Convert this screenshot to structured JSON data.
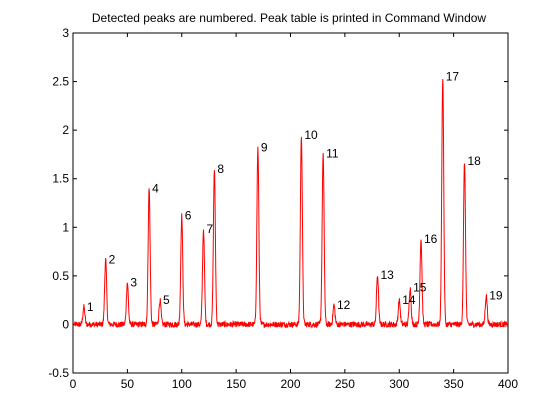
{
  "chart_data": {
    "type": "line",
    "title": "Detected peaks are numbered. Peak table is printed in Command Window",
    "xlabel": "",
    "ylabel": "",
    "xlim": [
      0,
      400
    ],
    "ylim": [
      -0.5,
      3
    ],
    "xticks": [
      0,
      50,
      100,
      150,
      200,
      250,
      300,
      350,
      400
    ],
    "yticks": [
      -0.5,
      0,
      0.5,
      1,
      1.5,
      2,
      2.5,
      3
    ],
    "xtick_labels": [
      "0",
      "50",
      "100",
      "150",
      "200",
      "250",
      "300",
      "350",
      "400"
    ],
    "ytick_labels": [
      "-0.5",
      "0",
      "0.5",
      "1",
      "1.5",
      "2",
      "2.5",
      "3"
    ],
    "grid": false,
    "line_color": "#ff0000",
    "noise_amplitude": 0.03,
    "peaks": [
      {
        "label": "1",
        "x": 10,
        "y": 0.18
      },
      {
        "label": "2",
        "x": 30,
        "y": 0.67
      },
      {
        "label": "3",
        "x": 50,
        "y": 0.43
      },
      {
        "label": "4",
        "x": 70,
        "y": 1.4
      },
      {
        "label": "5",
        "x": 80,
        "y": 0.25
      },
      {
        "label": "6",
        "x": 100,
        "y": 1.12
      },
      {
        "label": "7",
        "x": 120,
        "y": 0.98
      },
      {
        "label": "8",
        "x": 130,
        "y": 1.6
      },
      {
        "label": "9",
        "x": 170,
        "y": 1.82
      },
      {
        "label": "10",
        "x": 210,
        "y": 1.95
      },
      {
        "label": "11",
        "x": 230,
        "y": 1.76
      },
      {
        "label": "12",
        "x": 240,
        "y": 0.2
      },
      {
        "label": "13",
        "x": 280,
        "y": 0.51
      },
      {
        "label": "14",
        "x": 300,
        "y": 0.25
      },
      {
        "label": "15",
        "x": 310,
        "y": 0.38
      },
      {
        "label": "16",
        "x": 320,
        "y": 0.88
      },
      {
        "label": "17",
        "x": 340,
        "y": 2.55
      },
      {
        "label": "18",
        "x": 360,
        "y": 1.68
      },
      {
        "label": "19",
        "x": 380,
        "y": 0.3
      }
    ],
    "peak_width": 0.9
  }
}
